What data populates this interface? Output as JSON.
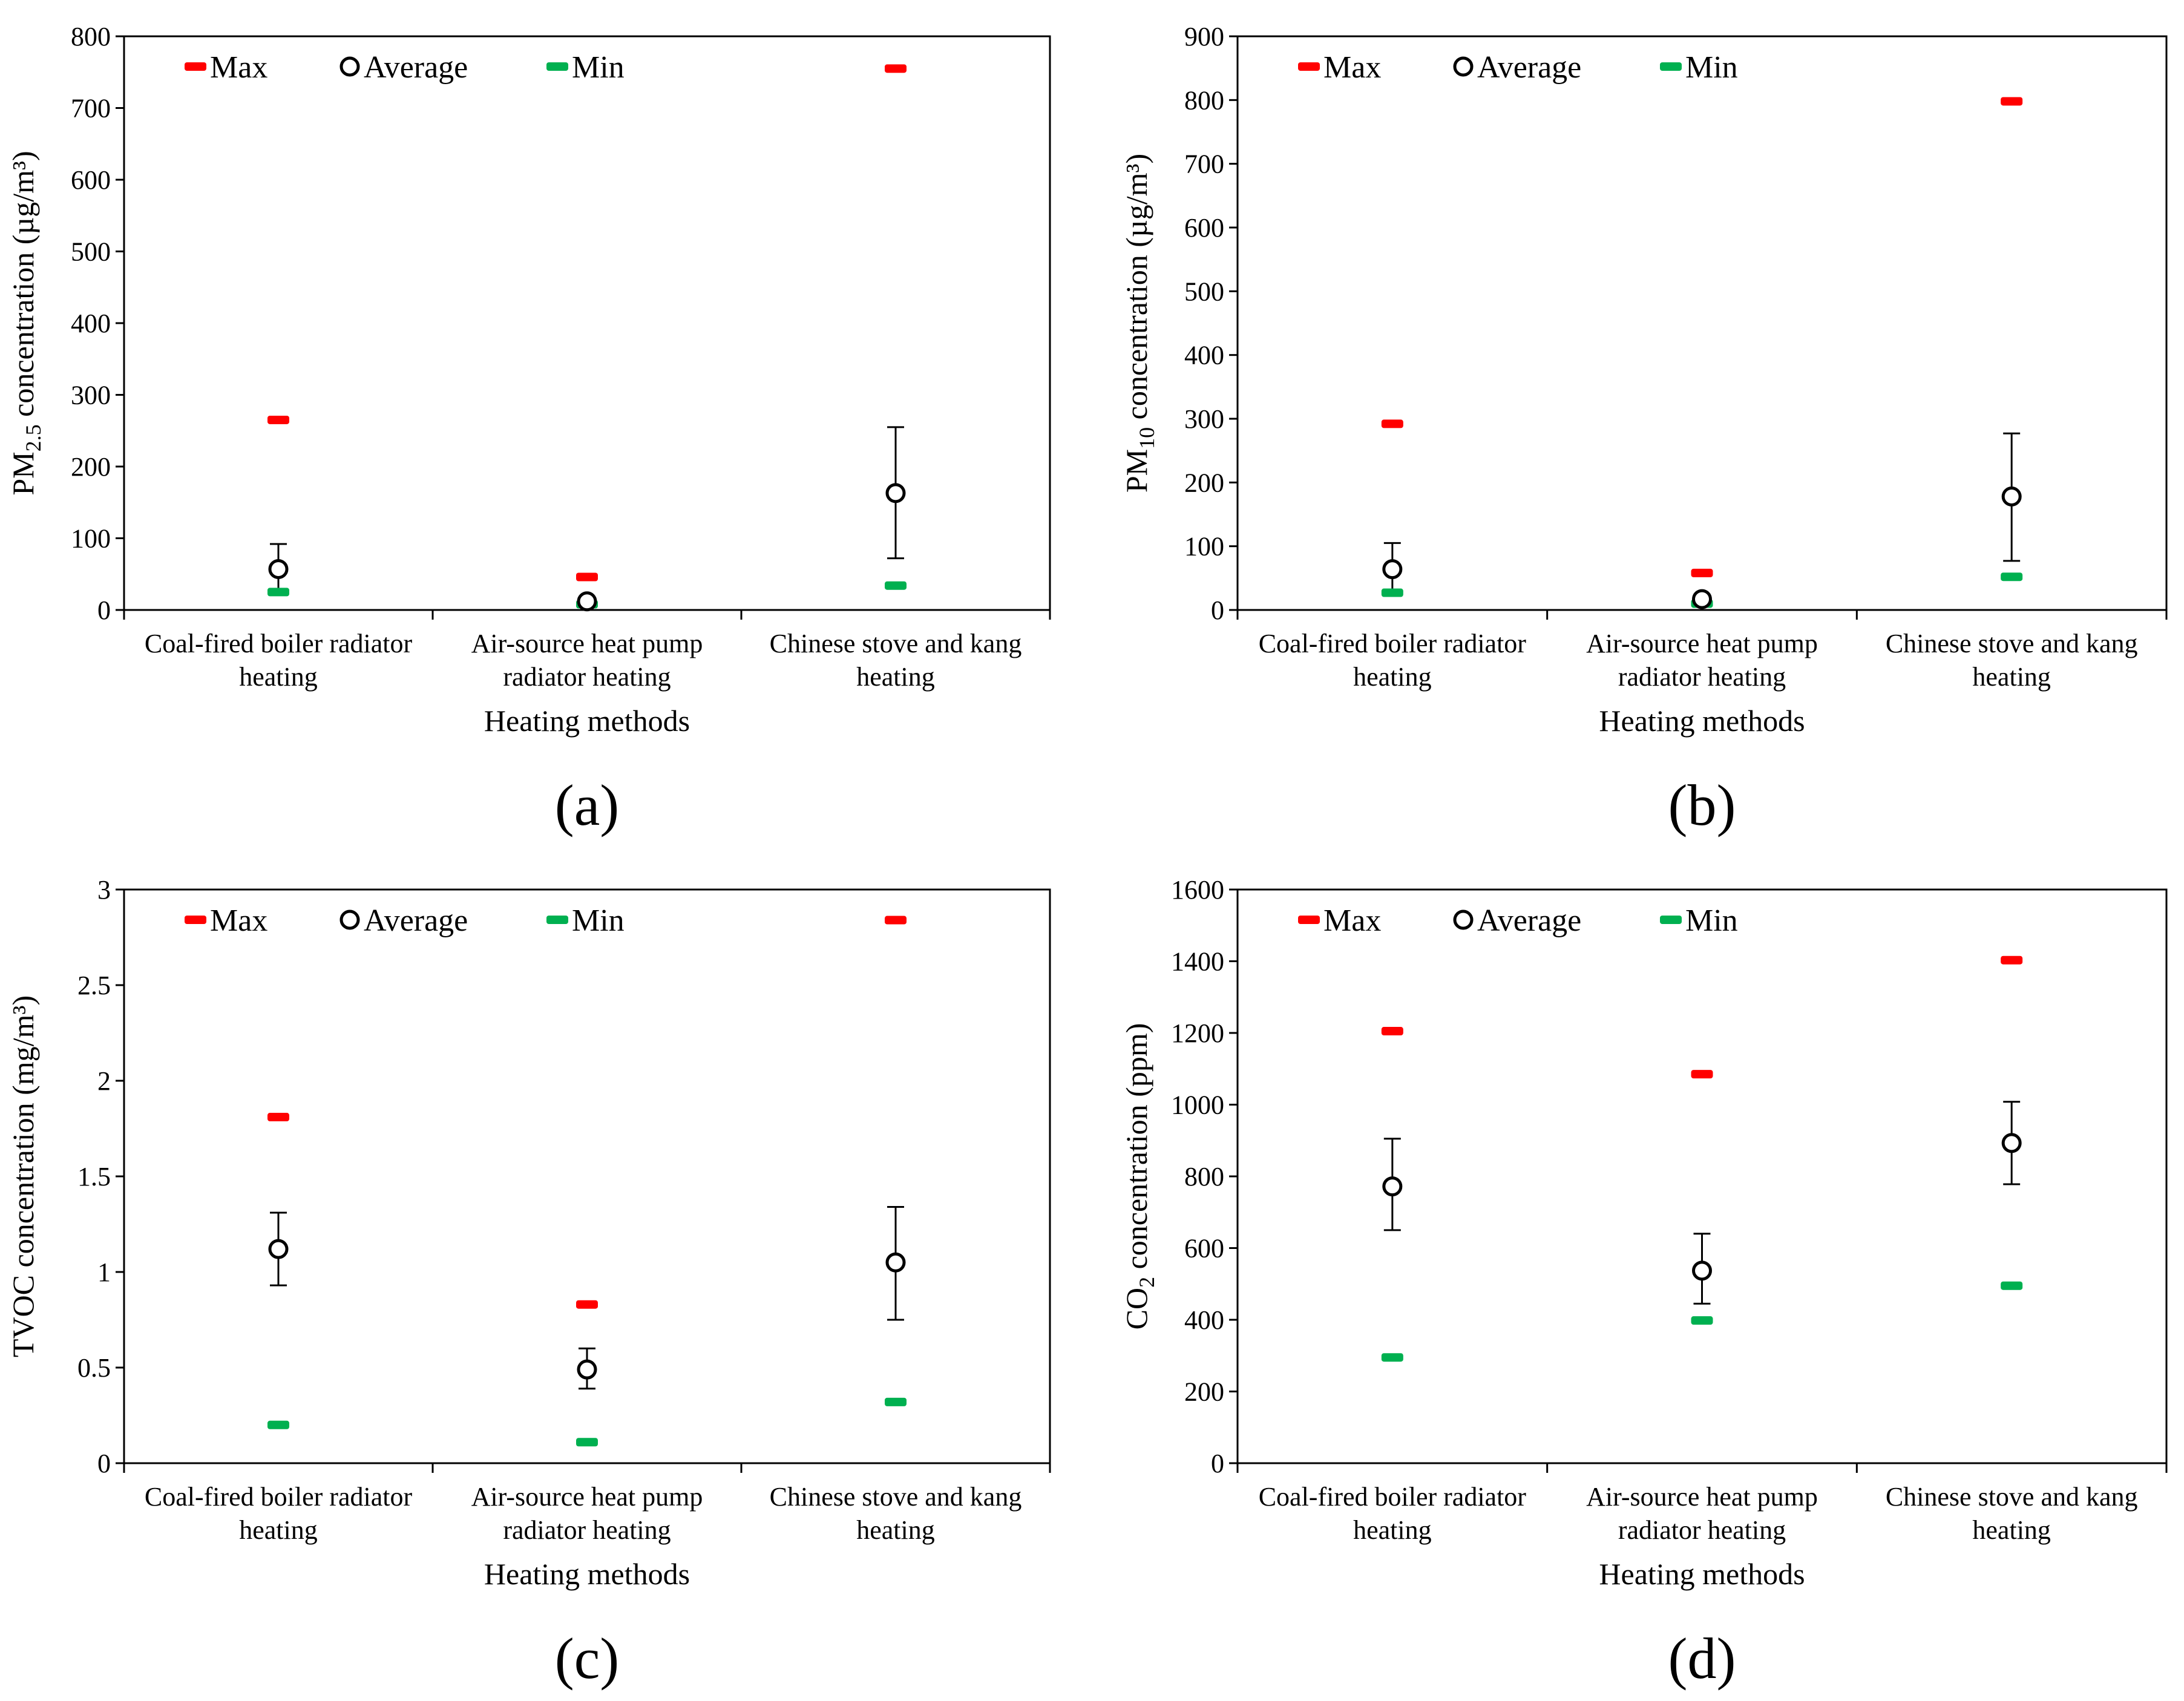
{
  "colors": {
    "max": "#ff0000",
    "min": "#00b050",
    "average": "#000000"
  },
  "legend": {
    "max": "Max",
    "average": "Average",
    "min": "Min"
  },
  "chart_data": [
    {
      "type": "scatter",
      "panel": "(a)",
      "xlabel": "Heating methods",
      "ylabel": {
        "prefix": "PM",
        "sub": "2.5",
        "suffix": " concentration (µg/m³)"
      },
      "ylim": [
        0,
        800
      ],
      "ystep": 100,
      "ytick_labels": [
        "0",
        "100",
        "200",
        "300",
        "400",
        "500",
        "600",
        "700",
        "800"
      ],
      "categories": [
        [
          "Coal-fired boiler radiator",
          "heating"
        ],
        [
          "Air-source heat pump",
          "radiator heating"
        ],
        [
          "Chinese stove and kang",
          "heating"
        ]
      ],
      "series": [
        {
          "name": "Max",
          "values": [
            265,
            46,
            755
          ]
        },
        {
          "name": "Average",
          "values": [
            57,
            12,
            163
          ],
          "error_low": [
            24,
            6,
            72
          ],
          "error_high": [
            92,
            16,
            255
          ]
        },
        {
          "name": "Min",
          "values": [
            25,
            8,
            34
          ]
        }
      ]
    },
    {
      "type": "scatter",
      "panel": "(b)",
      "xlabel": "Heating methods",
      "ylabel": {
        "prefix": "PM",
        "sub": "10",
        "suffix": " concentration (µg/m³)"
      },
      "ylim": [
        0,
        900
      ],
      "ystep": 100,
      "ytick_labels": [
        "0",
        "100",
        "200",
        "300",
        "400",
        "500",
        "600",
        "700",
        "800",
        "900"
      ],
      "categories": [
        [
          "Coal-fired boiler radiator",
          "heating"
        ],
        [
          "Air-source heat pump",
          "radiator heating"
        ],
        [
          "Chinese stove and kang",
          "heating"
        ]
      ],
      "series": [
        {
          "name": "Max",
          "values": [
            292,
            58,
            798
          ]
        },
        {
          "name": "Average",
          "values": [
            64,
            17,
            178
          ],
          "error_low": [
            25,
            8,
            77
          ],
          "error_high": [
            105,
            22,
            277
          ]
        },
        {
          "name": "Min",
          "values": [
            27,
            10,
            52
          ]
        }
      ]
    },
    {
      "type": "scatter",
      "panel": "(c)",
      "xlabel": "Heating methods",
      "ylabel": {
        "prefix": "TVOC concentration (mg/m³)",
        "sub": "",
        "suffix": ""
      },
      "ylim": [
        0,
        3
      ],
      "ystep": 0.5,
      "ytick_labels": [
        "0",
        "0.5",
        "1",
        "1.5",
        "2",
        "2.5",
        "3"
      ],
      "categories": [
        [
          "Coal-fired boiler radiator",
          "heating"
        ],
        [
          "Air-source heat pump",
          "radiator heating"
        ],
        [
          "Chinese stove and kang",
          "heating"
        ]
      ],
      "series": [
        {
          "name": "Max",
          "values": [
            1.81,
            0.83,
            2.84
          ]
        },
        {
          "name": "Average",
          "values": [
            1.12,
            0.49,
            1.05
          ],
          "error_low": [
            0.93,
            0.39,
            0.75
          ],
          "error_high": [
            1.31,
            0.6,
            1.34
          ]
        },
        {
          "name": "Min",
          "values": [
            0.2,
            0.11,
            0.32
          ]
        }
      ]
    },
    {
      "type": "scatter",
      "panel": "(d)",
      "xlabel": "Heating methods",
      "ylabel": {
        "prefix": "CO",
        "sub": "2",
        "suffix": " concentration (ppm)"
      },
      "ylim": [
        0,
        1600
      ],
      "ystep": 200,
      "ytick_labels": [
        "0",
        "200",
        "400",
        "600",
        "800",
        "1000",
        "1200",
        "1400",
        "1600"
      ],
      "categories": [
        [
          "Coal-fired boiler radiator",
          "heating"
        ],
        [
          "Air-source heat pump",
          "radiator heating"
        ],
        [
          "Chinese stove and kang",
          "heating"
        ]
      ],
      "series": [
        {
          "name": "Max",
          "values": [
            1205,
            1085,
            1403
          ]
        },
        {
          "name": "Average",
          "values": [
            772,
            537,
            893
          ],
          "error_low": [
            650,
            445,
            778
          ],
          "error_high": [
            905,
            640,
            1008
          ]
        },
        {
          "name": "Min",
          "values": [
            295,
            398,
            495
          ]
        }
      ]
    }
  ]
}
